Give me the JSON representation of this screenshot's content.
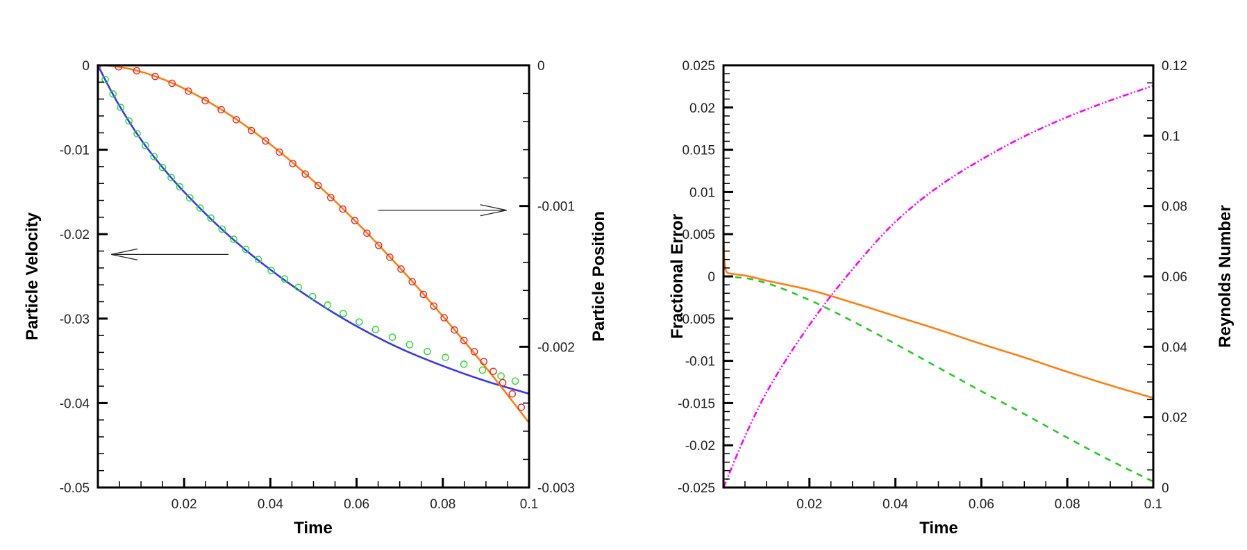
{
  "chart_data": [
    {
      "type": "line",
      "xlabel": "Time",
      "ylabel": "Particle Velocity",
      "y2label": "Particle Position",
      "xlim": [
        0,
        0.1
      ],
      "ylim": [
        -0.05,
        0
      ],
      "y2lim": [
        -0.003,
        0
      ],
      "grid": false,
      "legend": "none",
      "xticks": [
        {
          "value": 0.02,
          "label": "0.02"
        },
        {
          "value": 0.04,
          "label": "0.04"
        },
        {
          "value": 0.06,
          "label": "0.06"
        },
        {
          "value": 0.08,
          "label": "0.08"
        },
        {
          "value": 0.1,
          "label": "0.1"
        }
      ],
      "x_minor_step": 0.005,
      "yticks": [
        {
          "value": 0,
          "label": "0"
        },
        {
          "value": -0.01,
          "label": "-0.01"
        },
        {
          "value": -0.02,
          "label": "-0.02"
        },
        {
          "value": -0.03,
          "label": "-0.03"
        },
        {
          "value": -0.04,
          "label": "-0.04"
        },
        {
          "value": -0.05,
          "label": "-0.05"
        }
      ],
      "y_minor_step": 0.002,
      "y2ticks": [
        {
          "value": 0,
          "label": "0"
        },
        {
          "value": -0.001,
          "label": "-0.001"
        },
        {
          "value": -0.002,
          "label": "-0.002"
        },
        {
          "value": -0.003,
          "label": "-0.003"
        }
      ],
      "y2_minor_step": 0.0002,
      "series": [
        {
          "axis": "y",
          "style": "line",
          "color": "#3636ff",
          "x": [
            0,
            0.0025,
            0.005,
            0.01,
            0.015,
            0.02,
            0.03,
            0.04,
            0.05,
            0.06,
            0.07,
            0.08,
            0.09,
            0.1
          ],
          "y": [
            0,
            -0.0025,
            -0.0048,
            -0.0088,
            -0.0121,
            -0.015,
            -0.02,
            -0.0242,
            -0.0278,
            -0.0309,
            -0.0335,
            -0.0356,
            -0.0374,
            -0.0389
          ]
        },
        {
          "axis": "y",
          "style": "markers",
          "color": "#22dd22",
          "x": [
            0,
            0.0017,
            0.0035,
            0.0053,
            0.0072,
            0.0091,
            0.011,
            0.013,
            0.015,
            0.017,
            0.019,
            0.0213,
            0.0237,
            0.0262,
            0.0288,
            0.0315,
            0.0343,
            0.0372,
            0.0402,
            0.0433,
            0.0465,
            0.0498,
            0.0533,
            0.0569,
            0.0606,
            0.0644,
            0.0683,
            0.0723,
            0.0764,
            0.0806,
            0.0849,
            0.0892,
            0.0935,
            0.0968
          ],
          "y": [
            0,
            -0.0017,
            -0.0034,
            -0.005,
            -0.0066,
            -0.0081,
            -0.0095,
            -0.0108,
            -0.0121,
            -0.0133,
            -0.0144,
            -0.0157,
            -0.0169,
            -0.0181,
            -0.0194,
            -0.0206,
            -0.0218,
            -0.023,
            -0.0243,
            -0.0253,
            -0.0263,
            -0.0274,
            -0.0284,
            -0.0294,
            -0.0304,
            -0.0313,
            -0.0322,
            -0.0331,
            -0.0339,
            -0.0346,
            -0.0354,
            -0.0361,
            -0.0368,
            -0.0374
          ]
        },
        {
          "axis": "y2",
          "style": "line",
          "color": "#ff7f0e",
          "x": [
            0,
            0.0025,
            0.005,
            0.01,
            0.015,
            0.02,
            0.03,
            0.04,
            0.05,
            0.06,
            0.07,
            0.08,
            0.09,
            0.1
          ],
          "y": [
            0,
            -3.1e-06,
            -1.22e-05,
            -4.6e-05,
            -9.8e-05,
            -0.000166,
            -0.000341,
            -0.000562,
            -0.000822,
            -0.001116,
            -0.001438,
            -0.001783,
            -0.002148,
            -0.00254
          ]
        },
        {
          "axis": "y2",
          "style": "markers",
          "color": "#ee2222",
          "x": [
            0,
            0.0048,
            0.009,
            0.0133,
            0.0172,
            0.021,
            0.0249,
            0.0286,
            0.0321,
            0.0356,
            0.0389,
            0.0421,
            0.0452,
            0.0481,
            0.0511,
            0.054,
            0.0568,
            0.0596,
            0.0624,
            0.0651,
            0.0677,
            0.0703,
            0.0729,
            0.0755,
            0.0779,
            0.0803,
            0.0827,
            0.0849,
            0.0873,
            0.0895,
            0.0917,
            0.0939,
            0.0961,
            0.0982
          ],
          "y": [
            0,
            -1.1e-05,
            -3.9e-05,
            -8e-05,
            -0.000128,
            -0.000184,
            -0.000252,
            -0.000316,
            -0.000387,
            -0.000464,
            -0.000538,
            -0.000617,
            -0.000698,
            -0.000773,
            -0.000854,
            -0.00094,
            -0.001022,
            -0.001104,
            -0.001193,
            -0.00128,
            -0.001364,
            -0.001448,
            -0.001538,
            -0.001628,
            -0.001711,
            -0.001794,
            -0.001881,
            -0.001955,
            -0.002035,
            -0.002105,
            -0.002175,
            -0.002255,
            -0.002335,
            -0.00243
          ]
        }
      ],
      "annotations": [
        {
          "type": "arrow",
          "axis": "y",
          "from": [
            0.0303,
            -0.0224
          ],
          "to": [
            0.0031,
            -0.0224
          ]
        },
        {
          "type": "arrow",
          "axis": "y2",
          "from": [
            0.065,
            -0.00103
          ],
          "to": [
            0.0948,
            -0.00103
          ]
        }
      ]
    },
    {
      "type": "line",
      "xlabel": "Time",
      "ylabel": "Fractional Error",
      "y2label": "Reynolds Number",
      "xlim": [
        0,
        0.1
      ],
      "ylim": [
        -0.025,
        0.025
      ],
      "y2lim": [
        0,
        0.12
      ],
      "grid": false,
      "legend": "none",
      "xticks": [
        {
          "value": 0.02,
          "label": "0.02"
        },
        {
          "value": 0.04,
          "label": "0.04"
        },
        {
          "value": 0.06,
          "label": "0.06"
        },
        {
          "value": 0.08,
          "label": "0.08"
        },
        {
          "value": 0.1,
          "label": "0.1"
        }
      ],
      "x_minor_step": 0.005,
      "yticks": [
        {
          "value": 0.025,
          "label": "0.025"
        },
        {
          "value": 0.02,
          "label": "0.02"
        },
        {
          "value": 0.015,
          "label": "0.015"
        },
        {
          "value": 0.01,
          "label": "0.01"
        },
        {
          "value": 0.005,
          "label": "0.005"
        },
        {
          "value": 0,
          "label": "0"
        },
        {
          "value": -0.005,
          "label": "-0.005"
        },
        {
          "value": -0.01,
          "label": "-0.01"
        },
        {
          "value": -0.015,
          "label": "-0.015"
        },
        {
          "value": -0.02,
          "label": "-0.02"
        },
        {
          "value": -0.025,
          "label": "-0.025"
        }
      ],
      "y_minor_step": 0.001,
      "y2ticks": [
        {
          "value": 0.12,
          "label": "0.12"
        },
        {
          "value": 0.1,
          "label": "0.1"
        },
        {
          "value": 0.08,
          "label": "0.08"
        },
        {
          "value": 0.06,
          "label": "0.06"
        },
        {
          "value": 0.04,
          "label": "0.04"
        },
        {
          "value": 0.02,
          "label": "0.02"
        },
        {
          "value": 0,
          "label": "0"
        }
      ],
      "y2_minor_step": 0.005,
      "series": [
        {
          "axis": "y",
          "style": "line",
          "color": "#ff7f0e",
          "x": [
            0,
            0.0002,
            0.0005,
            0.001,
            0.002,
            0.005,
            0.01,
            0.02,
            0.03,
            0.04,
            0.05,
            0.06,
            0.07,
            0.08,
            0.09,
            0.1
          ],
          "y": [
            0.005,
            0.002,
            0.0008,
            0.0004,
            0.0003,
            0.0001,
            -0.0005,
            -0.0016,
            -0.0031,
            -0.0047,
            -0.0063,
            -0.008,
            -0.0096,
            -0.0113,
            -0.0129,
            -0.0144
          ]
        },
        {
          "axis": "y",
          "style": "dashed",
          "color": "#22cc22",
          "x": [
            0,
            0.005,
            0.01,
            0.02,
            0.03,
            0.04,
            0.05,
            0.06,
            0.07,
            0.08,
            0.09,
            0.1
          ],
          "y": [
            0,
            -0.0002,
            -0.0008,
            -0.0028,
            -0.0053,
            -0.008,
            -0.0108,
            -0.0136,
            -0.0163,
            -0.0191,
            -0.0218,
            -0.0243
          ]
        },
        {
          "axis": "y2",
          "style": "dashdot",
          "color": "#ff00ff",
          "x": [
            0,
            0.005,
            0.01,
            0.02,
            0.03,
            0.04,
            0.05,
            0.06,
            0.07,
            0.08,
            0.09,
            0.1
          ],
          "y": [
            0,
            0.0145,
            0.027,
            0.0462,
            0.062,
            0.0755,
            0.0855,
            0.0932,
            0.0998,
            0.1053,
            0.11,
            0.1142
          ]
        }
      ]
    }
  ]
}
